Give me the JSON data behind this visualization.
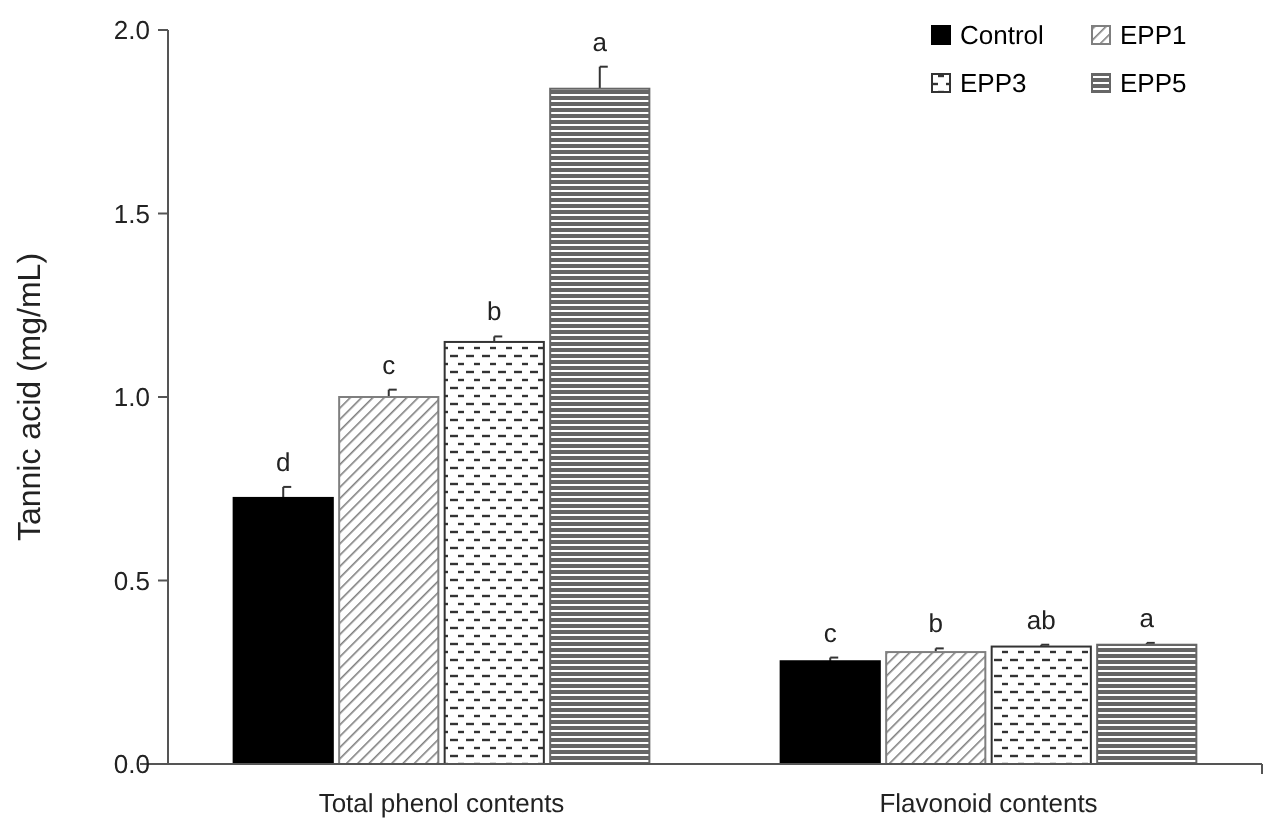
{
  "chart_data": {
    "type": "bar",
    "ylabel": "Tannic acid (mg/mL)",
    "categories": [
      "Total phenol contents",
      "Flavonoid contents"
    ],
    "series": [
      {
        "name": "Control",
        "color": "#000000",
        "values": [
          0.725,
          0.28
        ],
        "errors": [
          0.03,
          0.01
        ]
      },
      {
        "name": "EPP1",
        "color": "#7f7f7f",
        "values": [
          1.0,
          0.305
        ],
        "errors": [
          0.02,
          0.01
        ]
      },
      {
        "name": "EPP3",
        "color": "#333333",
        "values": [
          1.15,
          0.32
        ],
        "errors": [
          0.015,
          0.005
        ]
      },
      {
        "name": "EPP5",
        "color": "#666666",
        "values": [
          1.84,
          0.325
        ],
        "errors": [
          0.06,
          0.005
        ]
      }
    ],
    "ylim": [
      0,
      2
    ],
    "yticks": [
      {
        "value": 0,
        "label": "0.0"
      },
      {
        "value": 0.5,
        "label": "0.5"
      },
      {
        "value": 1,
        "label": "1.0"
      },
      {
        "value": 1.5,
        "label": "1.5"
      },
      {
        "value": 2,
        "label": "2.0"
      }
    ],
    "legend": "top right",
    "grid": false,
    "annotations": [
      "d",
      "c",
      "b",
      "a",
      "c",
      "b",
      "ab",
      "a"
    ]
  }
}
